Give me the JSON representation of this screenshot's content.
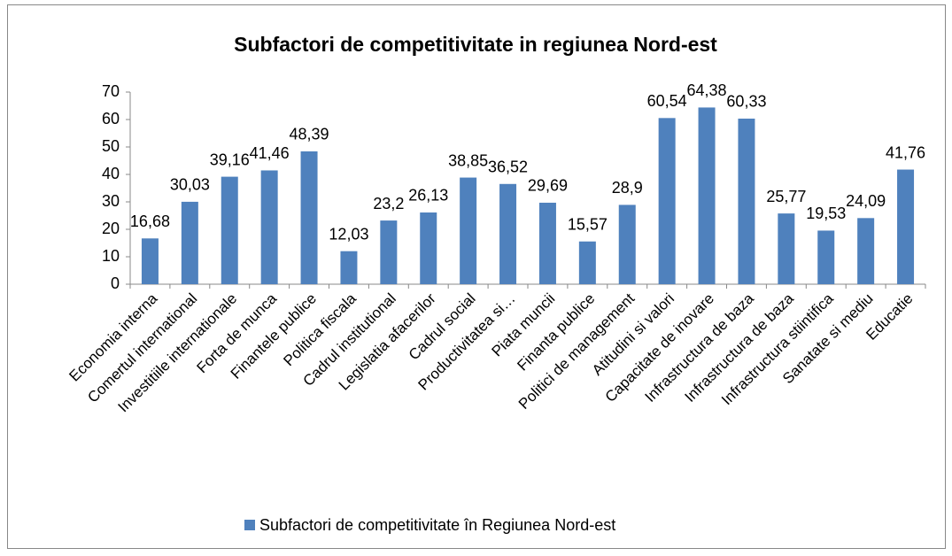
{
  "chart_data": {
    "type": "bar",
    "title": "Subfactori de competitivitate in regiunea Nord-est",
    "categories": [
      "Economia interna",
      "Comertul international",
      "Investitiile internationale",
      "Forta de munca",
      "Finantele publice",
      "Politica fiscala",
      "Cadrul institutional",
      "Legislatia afacerilor",
      "Cadrul social",
      "Productivitatea si…",
      "Piata muncii",
      "Finanta publice",
      "Politici de management",
      "Atitudini si valori",
      "Capacitate de inovare",
      "Infrastructura de baza",
      "Infrastructura de baza",
      "Infrastructura stiintifica",
      "Sanatate si mediu",
      "Educatie"
    ],
    "series": [
      {
        "name": "Subfactori de competitivitate în Regiunea Nord-est",
        "color": "#4f81bd",
        "values": [
          16.68,
          30.03,
          39.16,
          41.46,
          48.39,
          12.03,
          23.2,
          26.13,
          38.85,
          36.52,
          29.69,
          15.57,
          28.9,
          60.54,
          64.38,
          60.33,
          25.77,
          19.53,
          24.09,
          41.76
        ],
        "value_labels": [
          "16,68",
          "30,03",
          "39,16",
          "41,46",
          "48,39",
          "12,03",
          "23,2",
          "26,13",
          "38,85",
          "36,52",
          "29,69",
          "15,57",
          "28,9",
          "60,54",
          "64,38",
          "60,33",
          "25,77",
          "19,53",
          "24,09",
          "41,76"
        ]
      }
    ],
    "ylim": [
      0,
      70
    ],
    "yticks": [
      0,
      10,
      20,
      30,
      40,
      50,
      60,
      70
    ],
    "grid": false,
    "legend": "bottom"
  }
}
